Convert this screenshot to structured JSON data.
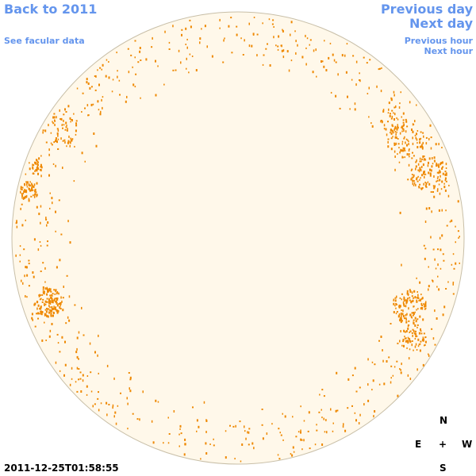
{
  "nav": {
    "back_label": "Back to 2011",
    "facular_label": "See facular data",
    "prev_day_label": "Previous day",
    "next_day_label": "Next day",
    "prev_hour_label": "Previous hour",
    "next_hour_label": "Next hour"
  },
  "colors": {
    "link": "#6495ed",
    "disk_fill": "#fff8ea",
    "disk_edge": "#c8bfa8",
    "facula": "#ee8800"
  },
  "compass": {
    "north": "N",
    "east": "E",
    "center": "+",
    "west": "W",
    "south": "S"
  },
  "timestamp": "2011-12-25T01:58:55"
}
